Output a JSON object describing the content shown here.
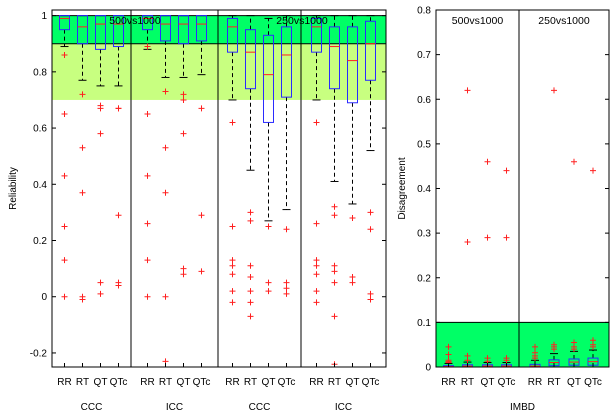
{
  "chart_data": [
    {
      "type": "box",
      "ylabel": "Reliability",
      "ylim": [
        -0.25,
        1.02
      ],
      "yticks": [
        -0.2,
        0,
        0.2,
        0.4,
        0.6,
        0.8,
        1
      ],
      "ytick_labels": [
        "-0.2",
        "0",
        "0.2",
        "0.4",
        "0.6",
        "0.8",
        "1"
      ],
      "bands": [
        {
          "from": 0.9,
          "to": 1.0,
          "color": "#00ff66"
        },
        {
          "from": 0.7,
          "to": 0.9,
          "color": "#c8ff80"
        }
      ],
      "group_titles": [
        "500vs1000",
        "250vs1000"
      ],
      "category_labels": [
        "RR",
        "RT",
        "QT",
        "QTc"
      ],
      "panel_labels": [
        "CCC",
        "ICC",
        "CCC",
        "ICC"
      ],
      "panels": [
        {
          "boxes": [
            {
              "q1": 0.95,
              "median": 0.99,
              "q3": 1.0,
              "whisker_low": 0.89,
              "whisker_high": 1.0,
              "outliers": [
                0.65,
                0.43,
                0.25,
                0.13,
                0.0,
                0.86
              ]
            },
            {
              "q1": 0.9,
              "median": 0.96,
              "q3": 1.0,
              "whisker_low": 0.77,
              "whisker_high": 1.0,
              "outliers": [
                0.72,
                0.53,
                0.37,
                0.0,
                -0.01
              ]
            },
            {
              "q1": 0.88,
              "median": 0.97,
              "q3": 1.0,
              "whisker_low": 0.75,
              "whisker_high": 1.0,
              "outliers": [
                0.68,
                0.67,
                0.58,
                0.05,
                0.01
              ]
            },
            {
              "q1": 0.89,
              "median": 0.97,
              "q3": 1.0,
              "whisker_low": 0.75,
              "whisker_high": 1.0,
              "outliers": [
                0.67,
                0.67,
                0.29,
                0.05,
                0.04
              ]
            }
          ]
        },
        {
          "boxes": [
            {
              "q1": 0.95,
              "median": 0.99,
              "q3": 1.0,
              "whisker_low": 0.88,
              "whisker_high": 1.0,
              "outliers": [
                0.65,
                0.43,
                0.26,
                0.13,
                0.0,
                0.89
              ]
            },
            {
              "q1": 0.91,
              "median": 0.97,
              "q3": 1.0,
              "whisker_low": 0.78,
              "whisker_high": 1.0,
              "outliers": [
                0.73,
                0.53,
                0.37,
                0.0,
                -0.23
              ]
            },
            {
              "q1": 0.9,
              "median": 0.97,
              "q3": 1.0,
              "whisker_low": 0.78,
              "whisker_high": 1.0,
              "outliers": [
                0.72,
                0.7,
                0.58,
                0.1,
                0.08
              ]
            },
            {
              "q1": 0.91,
              "median": 0.97,
              "q3": 1.0,
              "whisker_low": 0.79,
              "whisker_high": 1.0,
              "outliers": [
                0.67,
                0.29,
                0.09
              ]
            }
          ]
        },
        {
          "boxes": [
            {
              "q1": 0.87,
              "median": 0.96,
              "q3": 0.99,
              "whisker_low": 0.7,
              "whisker_high": 1.0,
              "outliers": [
                0.62,
                0.25,
                0.13,
                0.11,
                0.08,
                0.02,
                -0.02
              ]
            },
            {
              "q1": 0.74,
              "median": 0.87,
              "q3": 0.95,
              "whisker_low": 0.45,
              "whisker_high": 1.0,
              "outliers": [
                0.3,
                0.27,
                0.11,
                0.07,
                0.02,
                -0.02,
                -0.07
              ]
            },
            {
              "q1": 0.62,
              "median": 0.79,
              "q3": 0.93,
              "whisker_low": 0.27,
              "whisker_high": 0.99,
              "outliers": [
                0.25,
                0.05,
                0.02
              ]
            },
            {
              "q1": 0.71,
              "median": 0.86,
              "q3": 0.96,
              "whisker_low": 0.31,
              "whisker_high": 1.0,
              "outliers": [
                0.24,
                0.05,
                0.03,
                0.01
              ]
            }
          ]
        },
        {
          "boxes": [
            {
              "q1": 0.87,
              "median": 0.96,
              "q3": 0.99,
              "whisker_low": 0.7,
              "whisker_high": 1.0,
              "outliers": [
                0.62,
                0.26,
                0.13,
                0.11,
                0.08,
                0.02,
                -0.02
              ]
            },
            {
              "q1": 0.74,
              "median": 0.89,
              "q3": 0.96,
              "whisker_low": 0.41,
              "whisker_high": 1.0,
              "outliers": [
                0.32,
                0.29,
                0.11,
                0.09,
                0.05,
                -0.07,
                -0.24
              ]
            },
            {
              "q1": 0.69,
              "median": 0.84,
              "q3": 0.96,
              "whisker_low": 0.33,
              "whisker_high": 1.0,
              "outliers": [
                0.28,
                0.07,
                0.05
              ]
            },
            {
              "q1": 0.77,
              "median": 0.9,
              "q3": 0.98,
              "whisker_low": 0.52,
              "whisker_high": 1.0,
              "outliers": [
                0.3,
                0.24,
                0.01,
                -0.01
              ]
            }
          ]
        }
      ]
    },
    {
      "type": "box",
      "ylabel": "Disagreement",
      "ylim": [
        0,
        0.8
      ],
      "yticks": [
        0,
        0.1,
        0.2,
        0.3,
        0.4,
        0.5,
        0.6,
        0.7,
        0.8
      ],
      "ytick_labels": [
        "0",
        "0.1",
        "0.2",
        "0.3",
        "0.4",
        "0.5",
        "0.6",
        "0.7",
        "0.8"
      ],
      "bands": [
        {
          "from": 0.0,
          "to": 0.1,
          "color": "#00ff66"
        }
      ],
      "group_titles": [
        "500vs1000",
        "250vs1000"
      ],
      "category_labels": [
        "RR",
        "RT",
        "QT",
        "QTc"
      ],
      "panel_labels": [
        "IMBD"
      ],
      "panels": [
        {
          "boxes": [
            {
              "q1": 0.0,
              "median": 0.001,
              "q3": 0.003,
              "whisker_low": 0.0,
              "whisker_high": 0.008,
              "outliers": [
                0.045,
                0.028,
                0.015,
                0.012,
                0.01
              ]
            },
            {
              "q1": 0.0,
              "median": 0.002,
              "q3": 0.005,
              "whisker_low": 0.0,
              "whisker_high": 0.011,
              "outliers": [
                0.62,
                0.28,
                0.025,
                0.015
              ]
            },
            {
              "q1": 0.0,
              "median": 0.002,
              "q3": 0.005,
              "whisker_low": 0.0,
              "whisker_high": 0.01,
              "outliers": [
                0.46,
                0.29,
                0.02,
                0.013
              ]
            },
            {
              "q1": 0.0,
              "median": 0.002,
              "q3": 0.005,
              "whisker_low": 0.0,
              "whisker_high": 0.01,
              "outliers": [
                0.44,
                0.29,
                0.02,
                0.015
              ]
            }
          ]
        },
        {
          "boxes": [
            {
              "q1": 0.0,
              "median": 0.002,
              "q3": 0.006,
              "whisker_low": 0.0,
              "whisker_high": 0.015,
              "outliers": [
                0.045,
                0.032,
                0.025,
                0.02
              ]
            },
            {
              "q1": 0.003,
              "median": 0.01,
              "q3": 0.016,
              "whisker_low": 0.0,
              "whisker_high": 0.03,
              "outliers": [
                0.62,
                0.05,
                0.045,
                0.04
              ]
            },
            {
              "q1": 0.004,
              "median": 0.011,
              "q3": 0.018,
              "whisker_low": 0.0,
              "whisker_high": 0.035,
              "outliers": [
                0.46,
                0.055,
                0.045,
                0.04
              ]
            },
            {
              "q1": 0.004,
              "median": 0.012,
              "q3": 0.02,
              "whisker_low": 0.0,
              "whisker_high": 0.038,
              "outliers": [
                0.44,
                0.06,
                0.05,
                0.045
              ]
            }
          ]
        }
      ]
    }
  ]
}
